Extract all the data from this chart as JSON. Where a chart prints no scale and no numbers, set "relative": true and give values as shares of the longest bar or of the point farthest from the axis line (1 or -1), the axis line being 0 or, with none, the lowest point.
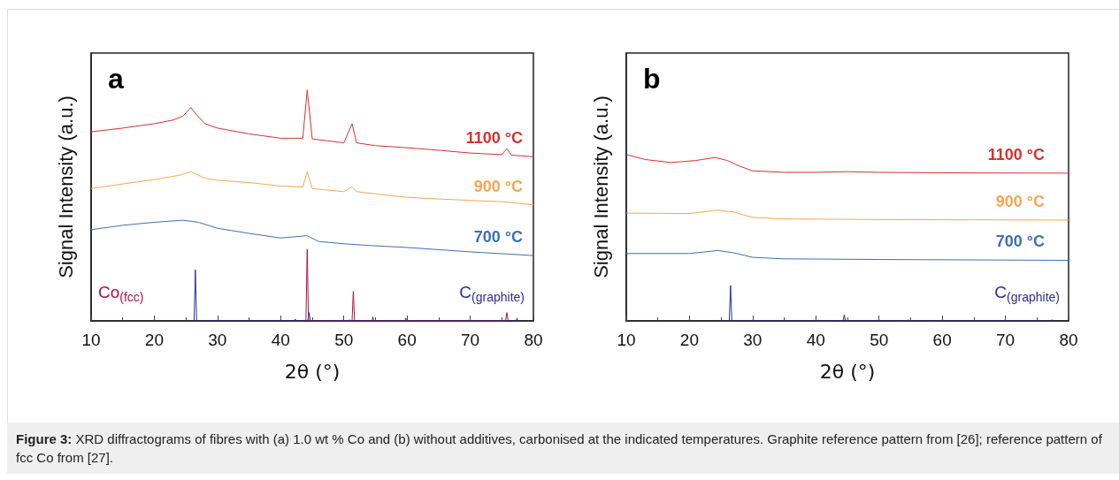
{
  "chart_data": [
    {
      "type": "line",
      "title": "a",
      "xlabel": "2θ (°)",
      "ylabel": "Signal Intensity (a.u.)",
      "relative": true,
      "xlim": [
        10,
        80
      ],
      "xticks": [
        10,
        20,
        30,
        40,
        50,
        60,
        70,
        80
      ],
      "grid": false,
      "legend": false,
      "marker": "none",
      "line_style": "solid",
      "annotations": [
        "Figure 3: XRD diffractograms of fibres with (a) 1.0 wt % Co and (b) without additives, carbonised at the indicated temperatures. Graphite reference pattern from [26]; reference pattern of fcc Co from [27]."
      ],
      "series": [
        {
          "name": "1100 °C",
          "color": "#d93030",
          "x": [
            10,
            15,
            20,
            23,
            24.5,
            25.8,
            26.5,
            28,
            30,
            35,
            40,
            43.5,
            44.2,
            45,
            50,
            51.3,
            52,
            55,
            60,
            65,
            70,
            75,
            75.8,
            76.5,
            80
          ],
          "values": [
            0.819,
            0.835,
            0.854,
            0.87,
            0.886,
            0.924,
            0.899,
            0.854,
            0.835,
            0.81,
            0.791,
            0.791,
            1.0,
            0.788,
            0.771,
            0.854,
            0.771,
            0.759,
            0.75,
            0.739,
            0.727,
            0.72,
            0.746,
            0.718,
            0.711
          ]
        },
        {
          "name": "900 °C",
          "color": "#f9a550",
          "x": [
            10,
            15,
            20,
            24,
            25.8,
            28,
            30,
            35,
            40,
            43.5,
            44.2,
            45,
            50,
            51.3,
            52,
            55,
            60,
            65,
            70,
            75,
            80
          ],
          "values": [
            0.573,
            0.593,
            0.612,
            0.631,
            0.646,
            0.618,
            0.609,
            0.599,
            0.584,
            0.58,
            0.646,
            0.573,
            0.56,
            0.58,
            0.56,
            0.55,
            0.535,
            0.528,
            0.522,
            0.516,
            0.503
          ]
        },
        {
          "name": "700 °C",
          "color": "#3c6fb6",
          "x": [
            10,
            15,
            20,
            24.5,
            27,
            30,
            35,
            40,
            44.2,
            46,
            50,
            55,
            60,
            70,
            80
          ],
          "values": [
            0.395,
            0.414,
            0.427,
            0.436,
            0.427,
            0.401,
            0.379,
            0.359,
            0.369,
            0.344,
            0.334,
            0.325,
            0.318,
            0.299,
            0.283
          ]
        },
        {
          "name": "Co$_{(fcc)}$",
          "color": "#b0103c",
          "x": [
            44.0,
            44.2,
            44.4,
            51.3,
            51.5,
            51.7,
            75.6,
            75.8,
            76.0
          ],
          "values": [
            0,
            0.31,
            0,
            0,
            0.128,
            0,
            0,
            0.036,
            0
          ]
        },
        {
          "name": "C$_{(graphite)}$",
          "color": "#2b2b9a",
          "x": [
            26.3,
            26.5,
            26.7,
            42.2,
            42.3,
            42.4,
            44.3,
            44.5,
            44.7,
            50.8,
            50.9,
            51.0,
            54.5,
            54.6,
            54.7,
            59.7,
            59.8,
            59.9,
            77.3,
            77.4,
            77.5
          ],
          "values": [
            0,
            0.221,
            0,
            0,
            0.008,
            0,
            0,
            0.036,
            0,
            0,
            0.005,
            0,
            0,
            0.017,
            0,
            0,
            0.012,
            0,
            0,
            0.012,
            0
          ]
        }
      ]
    },
    {
      "type": "line",
      "title": "b",
      "xlabel": "2θ (°)",
      "ylabel": "Signal Intensity (a.u.)",
      "relative": true,
      "xlim": [
        10,
        80
      ],
      "xticks": [
        10,
        20,
        30,
        40,
        50,
        60,
        70,
        80
      ],
      "grid": false,
      "legend": false,
      "marker": "none",
      "line_style": "solid",
      "series": [
        {
          "name": "1100 °C",
          "color": "#d93030",
          "x": [
            10,
            13,
            17,
            21,
            24,
            26,
            28,
            30,
            35,
            40,
            45,
            50,
            60,
            80
          ],
          "values": [
            1.0,
            0.97,
            0.952,
            0.964,
            0.982,
            0.964,
            0.929,
            0.902,
            0.893,
            0.893,
            0.897,
            0.893,
            0.89,
            0.888
          ]
        },
        {
          "name": "900 °C",
          "color": "#f9a550",
          "x": [
            10,
            20,
            24.5,
            27,
            30,
            35,
            50,
            80
          ],
          "values": [
            0.648,
            0.645,
            0.666,
            0.654,
            0.622,
            0.613,
            0.609,
            0.606
          ]
        },
        {
          "name": "700 °C",
          "color": "#3c6fb6",
          "x": [
            10,
            20,
            24.5,
            27,
            30,
            35,
            50,
            80
          ],
          "values": [
            0.405,
            0.405,
            0.423,
            0.409,
            0.382,
            0.373,
            0.369,
            0.364
          ]
        },
        {
          "name": "C$_{(graphite)}$",
          "color": "#2b2b9a",
          "x": [
            26.3,
            26.5,
            26.7,
            42.2,
            42.3,
            42.4,
            44.3,
            44.5,
            44.7,
            54.5,
            54.6,
            54.7,
            59.7,
            59.8,
            59.9,
            77.3,
            77.4,
            77.5
          ],
          "values": [
            0,
            0.213,
            0,
            0,
            0.004,
            0,
            0,
            0.036,
            0,
            0,
            0.007,
            0,
            0,
            0.004,
            0,
            0,
            0.007,
            0
          ]
        }
      ]
    }
  ]
}
